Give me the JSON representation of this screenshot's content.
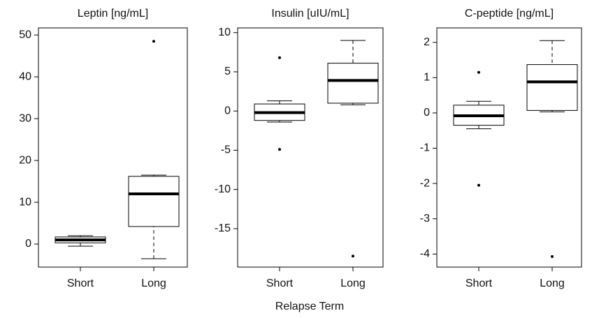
{
  "chart_data": [
    {
      "type": "box",
      "title": "Leptin [ng/mL]",
      "categories": [
        "Short",
        "Long"
      ],
      "boxes": [
        {
          "whisker_low": -0.5,
          "q1": 0.3,
          "median": 1.0,
          "q3": 1.7,
          "whisker_high": 2.0,
          "outliers": []
        },
        {
          "whisker_low": -3.5,
          "q1": 4.2,
          "median": 12,
          "q3": 16.2,
          "whisker_high": 16.5,
          "outliers": [
            48.5
          ]
        }
      ],
      "ylim": [
        -5.5,
        51.7
      ],
      "yticks": [
        0,
        10,
        20,
        30,
        40,
        50
      ],
      "color": "#000000"
    },
    {
      "type": "box",
      "title": "Insulin [uIU/mL]",
      "categories": [
        "Short",
        "Long"
      ],
      "boxes": [
        {
          "whisker_low": -1.4,
          "q1": -1.2,
          "median": -0.2,
          "q3": 0.9,
          "whisker_high": 1.3,
          "outliers": [
            6.8,
            -4.9
          ]
        },
        {
          "whisker_low": 0.8,
          "q1": 1.0,
          "median": 3.9,
          "q3": 6.1,
          "whisker_high": 9,
          "outliers": [
            -18.5
          ]
        }
      ],
      "ylim": [
        -19.9,
        10.6
      ],
      "yticks": [
        -15,
        -10,
        -5,
        0,
        5,
        10
      ],
      "color": "#000000"
    },
    {
      "type": "box",
      "title": "C-peptide [ng/mL]",
      "categories": [
        "Short",
        "Long"
      ],
      "boxes": [
        {
          "whisker_low": -0.45,
          "q1": -0.35,
          "median": -0.08,
          "q3": 0.22,
          "whisker_high": 0.33,
          "outliers": [
            1.15,
            -2.05
          ]
        },
        {
          "whisker_low": 0.03,
          "q1": 0.07,
          "median": 0.88,
          "q3": 1.37,
          "whisker_high": 2.05,
          "outliers": [
            -4.07
          ]
        }
      ],
      "ylim": [
        -4.37,
        2.41
      ],
      "yticks": [
        -4,
        -3,
        -2,
        -1,
        0,
        1,
        2
      ],
      "color": "#000000"
    }
  ],
  "figure": {
    "xlabel": "Relapse Term"
  }
}
